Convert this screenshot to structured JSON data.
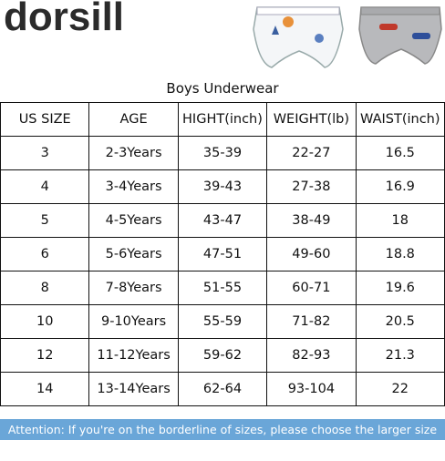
{
  "header": {
    "brand": "dorsill",
    "title": "Boys Underwear"
  },
  "table": {
    "columns": [
      "US SIZE",
      "AGE",
      "HIGHT(inch)",
      "WEIGHT(lb)",
      "WAIST(inch)"
    ],
    "rows": [
      [
        "3",
        "2-3Years",
        "35-39",
        "22-27",
        "16.5"
      ],
      [
        "4",
        "3-4Years",
        "39-43",
        "27-38",
        "16.9"
      ],
      [
        "5",
        "4-5Years",
        "43-47",
        "38-49",
        "18"
      ],
      [
        "6",
        "5-6Years",
        "47-51",
        "49-60",
        "18.8"
      ],
      [
        "8",
        "7-8Years",
        "51-55",
        "60-71",
        "19.6"
      ],
      [
        "10",
        "9-10Years",
        "55-59",
        "71-82",
        "20.5"
      ],
      [
        "12",
        "11-12Years",
        "59-62",
        "82-93",
        "21.3"
      ],
      [
        "14",
        "13-14Years",
        "62-64",
        "93-104",
        "22"
      ]
    ]
  },
  "note": "Attention: If you're on the borderline of sizes, please choose the larger size up"
}
